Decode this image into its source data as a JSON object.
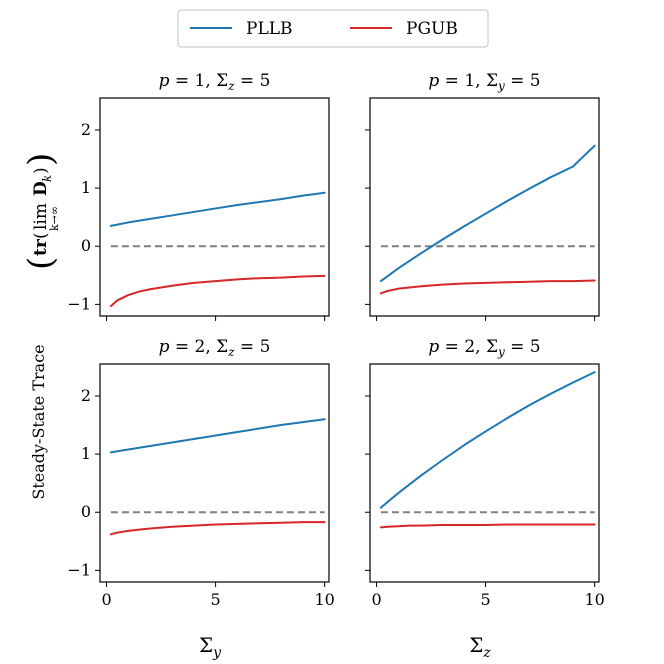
{
  "figure": {
    "legend": [
      {
        "name": "PLLB",
        "color": "#1f77b4"
      },
      {
        "name": "PGUB",
        "color": "#d62728"
      }
    ],
    "ylabel": "Steady-State Trace",
    "ylabel_math": "tr( lim D_k ), k→∞",
    "ylabel_parts": {
      "tr": "tr",
      "lim": "lim",
      "lim_sub": "k→∞",
      "D": "D",
      "D_sub": "k"
    },
    "xlabels": {
      "left": {
        "main": "Σ",
        "sub": "y"
      },
      "right": {
        "main": "Σ",
        "sub": "z"
      }
    }
  },
  "chart_data": [
    {
      "type": "line",
      "title": "p = 1, Σz = 5",
      "title_parts": {
        "p": "p = 1,",
        "sym": "Σ",
        "sub": "z",
        "eq": " = 5"
      },
      "xlim": [
        -0.3,
        10.2
      ],
      "ylim": [
        -1.2,
        2.55
      ],
      "xticks": [
        0,
        5,
        10
      ],
      "yticks": [
        -1,
        0,
        1,
        2
      ],
      "show_xticklabels": false,
      "show_yticklabels": true,
      "reference_line": 0,
      "series": [
        {
          "name": "PLLB",
          "x": [
            0.2,
            1,
            2,
            3,
            4,
            5,
            6,
            7,
            8,
            9,
            10
          ],
          "y": [
            0.35,
            0.41,
            0.47,
            0.53,
            0.59,
            0.65,
            0.71,
            0.76,
            0.81,
            0.87,
            0.92
          ]
        },
        {
          "name": "PGUB",
          "x": [
            0.2,
            0.5,
            1,
            1.5,
            2,
            3,
            4,
            5,
            6,
            7,
            8,
            9,
            10
          ],
          "y": [
            -1.03,
            -0.93,
            -0.84,
            -0.78,
            -0.74,
            -0.68,
            -0.63,
            -0.6,
            -0.57,
            -0.55,
            -0.54,
            -0.52,
            -0.51
          ]
        }
      ]
    },
    {
      "type": "line",
      "title": "p = 1, Σy = 5",
      "title_parts": {
        "p": "p = 1,",
        "sym": "Σ",
        "sub": "y",
        "eq": " = 5"
      },
      "xlim": [
        -0.3,
        10.2
      ],
      "ylim": [
        -1.2,
        2.55
      ],
      "xticks": [
        0,
        5,
        10
      ],
      "yticks": [
        -1,
        0,
        1,
        2
      ],
      "show_xticklabels": false,
      "show_yticklabels": false,
      "reference_line": 0,
      "series": [
        {
          "name": "PLLB",
          "x": [
            0.2,
            1,
            2,
            3,
            4,
            5,
            6,
            7,
            8,
            9,
            10
          ],
          "y": [
            -0.6,
            -0.38,
            -0.13,
            0.11,
            0.34,
            0.56,
            0.78,
            0.99,
            1.19,
            1.37,
            1.73
          ]
        },
        {
          "name": "PGUB",
          "x": [
            0.2,
            0.5,
            1,
            1.5,
            2,
            3,
            4,
            5,
            6,
            7,
            8,
            9,
            10
          ],
          "y": [
            -0.81,
            -0.77,
            -0.73,
            -0.71,
            -0.69,
            -0.66,
            -0.64,
            -0.63,
            -0.62,
            -0.61,
            -0.6,
            -0.6,
            -0.59
          ]
        }
      ]
    },
    {
      "type": "line",
      "title": "p = 2, Σz = 5",
      "title_parts": {
        "p": "p = 2,",
        "sym": "Σ",
        "sub": "z",
        "eq": " = 5"
      },
      "xlim": [
        -0.3,
        10.2
      ],
      "ylim": [
        -1.2,
        2.55
      ],
      "xticks": [
        0,
        5,
        10
      ],
      "yticks": [
        -1,
        0,
        1,
        2
      ],
      "show_xticklabels": true,
      "show_yticklabels": true,
      "reference_line": 0,
      "series": [
        {
          "name": "PLLB",
          "x": [
            0.2,
            1,
            2,
            3,
            4,
            5,
            6,
            7,
            8,
            9,
            10
          ],
          "y": [
            1.03,
            1.08,
            1.14,
            1.2,
            1.26,
            1.32,
            1.38,
            1.44,
            1.5,
            1.55,
            1.6
          ]
        },
        {
          "name": "PGUB",
          "x": [
            0.2,
            0.5,
            1,
            1.5,
            2,
            3,
            4,
            5,
            6,
            7,
            8,
            9,
            10
          ],
          "y": [
            -0.38,
            -0.35,
            -0.32,
            -0.3,
            -0.28,
            -0.25,
            -0.23,
            -0.21,
            -0.2,
            -0.19,
            -0.18,
            -0.17,
            -0.17
          ]
        }
      ]
    },
    {
      "type": "line",
      "title": "p = 2, Σy = 5",
      "title_parts": {
        "p": "p = 2,",
        "sym": "Σ",
        "sub": "y",
        "eq": " = 5"
      },
      "xlim": [
        -0.3,
        10.2
      ],
      "ylim": [
        -1.2,
        2.55
      ],
      "xticks": [
        0,
        5,
        10
      ],
      "yticks": [
        -1,
        0,
        1,
        2
      ],
      "show_xticklabels": true,
      "show_yticklabels": false,
      "reference_line": 0,
      "series": [
        {
          "name": "PLLB",
          "x": [
            0.2,
            1,
            2,
            3,
            4,
            5,
            6,
            7,
            8,
            9,
            10
          ],
          "y": [
            0.08,
            0.33,
            0.62,
            0.89,
            1.15,
            1.39,
            1.62,
            1.84,
            2.04,
            2.23,
            2.41
          ]
        },
        {
          "name": "PGUB",
          "x": [
            0.2,
            0.5,
            1,
            1.5,
            2,
            3,
            4,
            5,
            6,
            7,
            8,
            9,
            10
          ],
          "y": [
            -0.26,
            -0.25,
            -0.24,
            -0.23,
            -0.23,
            -0.22,
            -0.22,
            -0.22,
            -0.21,
            -0.21,
            -0.21,
            -0.21,
            -0.21
          ]
        }
      ]
    }
  ]
}
